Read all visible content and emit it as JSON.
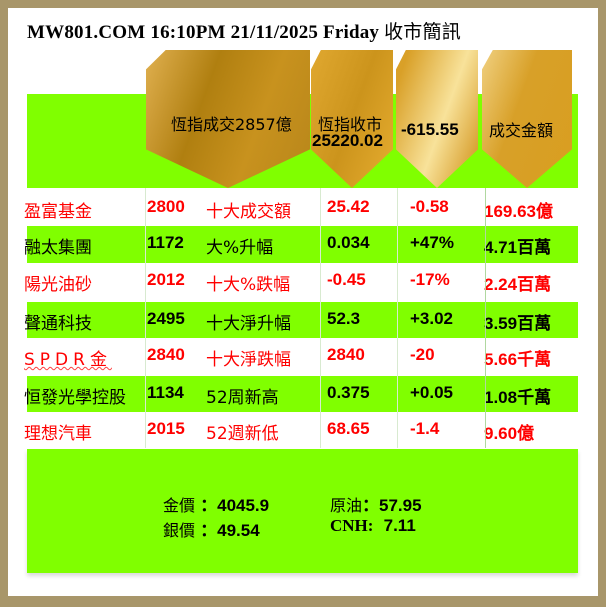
{
  "title": {
    "main": "MW801.COM 16:10PM 21/11/2025 Friday",
    "suffix": "收市簡訊"
  },
  "header": {
    "turnover": "恆指成交2857億",
    "close_label": "恆指收市",
    "close_value": "25220.02",
    "change": "-615.55",
    "amount_label": "成交金額"
  },
  "rows": [
    {
      "name": "盈富基金",
      "code": "2800",
      "category": "十大成交額",
      "price": "25.42",
      "change": "-0.58",
      "amount": "169.63億",
      "color": "#ff0000"
    },
    {
      "name": "融太集團",
      "code": "1172",
      "category": "大%升幅",
      "price": "0.034",
      "change": "+47%",
      "amount": "4.71百萬",
      "color": "#000000"
    },
    {
      "name": "陽光油砂",
      "code": "2012",
      "category": "十大%跌幅",
      "price": "-0.45",
      "change": "-17%",
      "amount": "2.24百萬",
      "color": "#ff0000"
    },
    {
      "name": "聲通科技",
      "code": "2495",
      "category": "十大淨升幅",
      "price": "52.3",
      "change": "+3.02",
      "amount": "3.59百萬",
      "color": "#000000"
    },
    {
      "name": "SPDR金",
      "code": "2840",
      "category": "十大淨跌幅",
      "price": "2840",
      "change": "-20",
      "amount": "5.66千萬",
      "color": "#ff0000"
    },
    {
      "name": "恒發光學控股",
      "code": "1134",
      "category": "52周新高",
      "price": "0.375",
      "change": "+0.05",
      "amount": "1.08千萬",
      "color": "#000000"
    },
    {
      "name": "理想汽車",
      "code": "2015",
      "category": "52週新低",
      "price": "68.65",
      "change": "-1.4",
      "amount": "9.60億",
      "color": "#ff0000"
    }
  ],
  "commodities": {
    "gold_label": "金價",
    "gold": "4045.9",
    "oil_label": "原油",
    "oil": "57.95",
    "silver_label": "銀價",
    "silver": "49.54",
    "cnh_label": "CNH:",
    "cnh": "7.11"
  },
  "colors": {
    "green": "#80ff00",
    "gold": "#c8961e",
    "red": "#ff0000",
    "frame": "#a8966a"
  }
}
